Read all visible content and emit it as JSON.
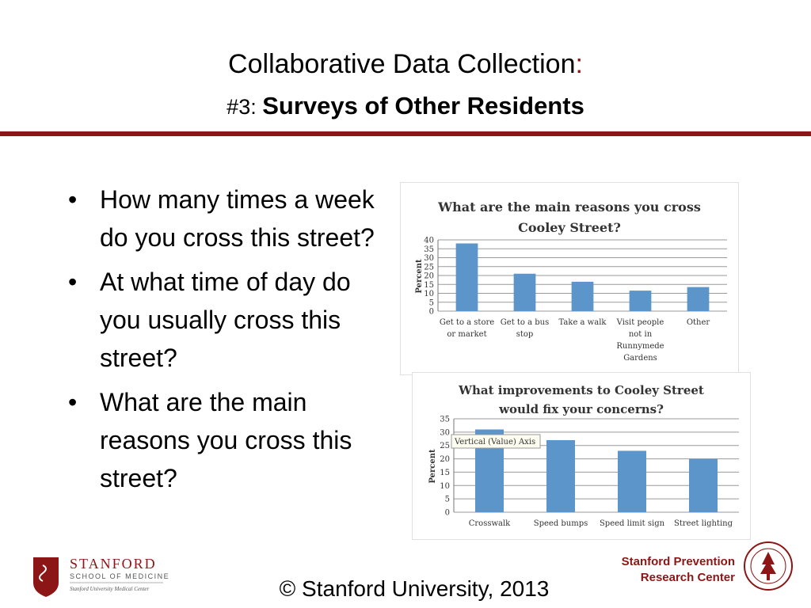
{
  "header": {
    "title_line1": "Collaborative Data Collection",
    "title_colon": ":",
    "title_line2_prefix": "#3:",
    "title_line2_bold": "Surveys of Other Residents"
  },
  "bullets": [
    "How many times a week do you cross this street?",
    "At what time of day do you usually cross this street?",
    "What are the main reasons you cross this street?"
  ],
  "charts": [
    {
      "title_line1": "What are the main reasons you cross",
      "title_line2": "Cooley Street?",
      "ylabel": "Percent"
    },
    {
      "title_line1": "What improvements to Cooley Street",
      "title_line2": "would fix your concerns?",
      "ylabel": "Percent",
      "tooltip": "Vertical (Value) Axis"
    }
  ],
  "chart_data": [
    {
      "type": "bar",
      "title": "What are the main reasons you cross Cooley Street?",
      "ylabel": "Percent",
      "categories": [
        "Get to a store or market",
        "Get to a bus stop",
        "Take a walk",
        "Visit people not in Runnymede Gardens",
        "Other"
      ],
      "values": [
        38,
        21,
        16.5,
        11.5,
        13.5
      ],
      "ylim": [
        0,
        40
      ],
      "yticks": [
        0,
        5,
        10,
        15,
        20,
        25,
        30,
        35,
        40
      ],
      "grid": true,
      "color": "#5b95c9"
    },
    {
      "type": "bar",
      "title": "What improvements to Cooley Street would fix your concerns?",
      "ylabel": "Percent",
      "categories": [
        "Crosswalk",
        "Speed bumps",
        "Speed limit sign",
        "Street lighting"
      ],
      "values": [
        31,
        27,
        23,
        20
      ],
      "ylim": [
        0,
        35
      ],
      "yticks": [
        0,
        5,
        10,
        15,
        20,
        25,
        30,
        35
      ],
      "grid": true,
      "color": "#5b95c9"
    }
  ],
  "footer": {
    "copyright": "© Stanford University, 2013",
    "logo_stanford": "STANFORD",
    "logo_school": "SCHOOL OF MEDICINE",
    "logo_center": "Stanford University Medical Center",
    "spr_line1": "Stanford Prevention",
    "spr_line2": "Research Center"
  },
  "colors": {
    "accent": "#8c1515",
    "bar": "#5b95c9"
  }
}
